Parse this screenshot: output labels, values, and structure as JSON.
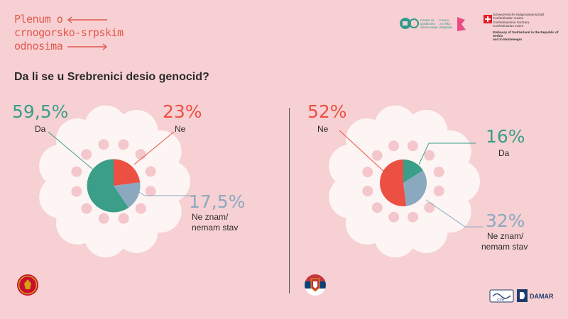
{
  "brand": {
    "line1": "Plenum o",
    "line2": "crnogorsko-srpskim",
    "line3": "odnosima"
  },
  "logos": {
    "center_line1": "Centar za",
    "center_line2": "građansko",
    "center_line3": "obrazovanje",
    "forum_line1": "Forum",
    "forum_line2": "za etiku",
    "forum_line3": "Belgrade",
    "swiss_line1": "Schweizerische Eidgenossenschaft",
    "swiss_line2": "Confédération suisse",
    "swiss_line3": "Confederazione Svizzera",
    "swiss_line4": "Confederaziun svizra",
    "swiss_line5": "Embassy of Switzerland in the Republic of Serbia",
    "swiss_line6": "and to Montenegro",
    "damar": "DAMAR",
    "bottom_left": "CSW"
  },
  "question": "Da li se u Srebrenici desio genocid?",
  "colors": {
    "da": "#3a9e88",
    "ne": "#ec5043",
    "neznam": "#8aa9bf",
    "background": "#f7d0d3",
    "flower": "#fdf5f3"
  },
  "chart_data": [
    {
      "type": "pie",
      "country": "Montenegro",
      "series": [
        {
          "name": "Da",
          "value": 59.5,
          "label": "59,5%"
        },
        {
          "name": "Ne",
          "value": 23,
          "label": "23%"
        },
        {
          "name": "Ne znam/ nemam stav",
          "value": 17.5,
          "label": "17,5%"
        }
      ]
    },
    {
      "type": "pie",
      "country": "Serbia",
      "series": [
        {
          "name": "Ne",
          "value": 52,
          "label": "52%"
        },
        {
          "name": "Da",
          "value": 16,
          "label": "16%"
        },
        {
          "name": "Ne znam/ nemam stav",
          "value": 32,
          "label": "32%"
        }
      ]
    }
  ],
  "labels": {
    "neznam_line1": "Ne znam/",
    "neznam_line2": "nemam stav"
  }
}
